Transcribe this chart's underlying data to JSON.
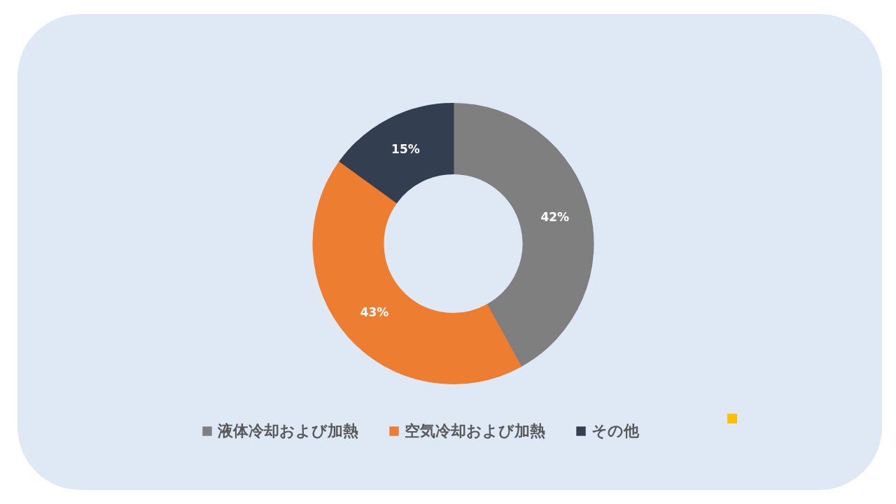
{
  "chart_data": {
    "type": "donut",
    "categories": [
      "液体冷却および加熱",
      "空気冷却および加熱",
      "その他"
    ],
    "values": [
      42,
      43,
      15
    ],
    "colors": [
      "#7f7f7f",
      "#ed7d31",
      "#333f50"
    ],
    "value_labels": [
      "42%",
      "43%",
      "15%"
    ],
    "legend": "bottom"
  }
}
